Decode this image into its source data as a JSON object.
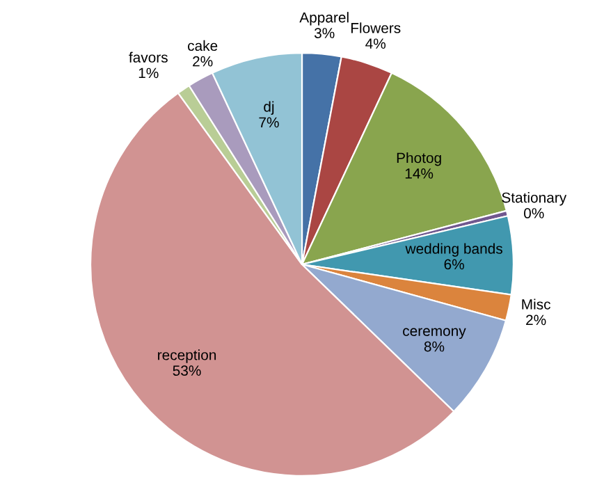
{
  "chart_data": {
    "type": "pie",
    "categories": [
      "Apparel",
      "Flowers",
      "Photog",
      "Stationary",
      "wedding bands",
      "Misc",
      "ceremony",
      "reception",
      "favors",
      "cake",
      "dj"
    ],
    "values": [
      3,
      4,
      14,
      0.4,
      6,
      2,
      8,
      53,
      1,
      2,
      7
    ],
    "value_labels": [
      "3%",
      "4%",
      "14%",
      "0%",
      "6%",
      "2%",
      "8%",
      "53%",
      "1%",
      "2%",
      "7%"
    ],
    "colors": [
      "#4572a7",
      "#aa4643",
      "#89a54e",
      "#71588f",
      "#4198af",
      "#db843d",
      "#93a9cf",
      "#d19392",
      "#b9cd96",
      "#a99bbd",
      "#92c3d5"
    ],
    "legend": false
  }
}
